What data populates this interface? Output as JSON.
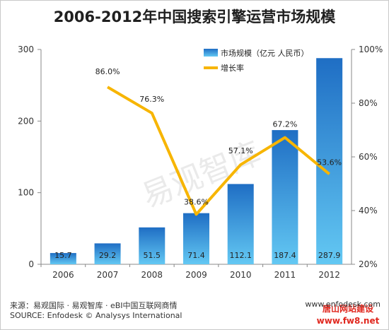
{
  "chart_data": {
    "type": "bar",
    "title": "2006-2012年中国搜索引擎运营市场规模",
    "categories": [
      "2006",
      "2007",
      "2008",
      "2009",
      "2010",
      "2011",
      "2012"
    ],
    "series": [
      {
        "name": "市场规模（亿元 人民币）",
        "type": "bar",
        "axis": "left",
        "values": [
          15.7,
          29.2,
          51.5,
          71.4,
          112.1,
          187.4,
          287.9
        ],
        "color": "#1f78c8"
      },
      {
        "name": "增长率",
        "type": "line",
        "axis": "right",
        "values": [
          null,
          86.0,
          76.3,
          38.6,
          57.1,
          67.2,
          53.6
        ],
        "labels": [
          "",
          "86.0%",
          "76.3%",
          "38.6%",
          "57.1%",
          "67.2%",
          "53.6%"
        ],
        "color": "#f7b500"
      }
    ],
    "y_left": {
      "range": [
        0,
        300
      ],
      "ticks": [
        "0",
        "100",
        "200",
        "300"
      ]
    },
    "y_right": {
      "range": [
        20,
        100
      ],
      "ticks": [
        "20%",
        "40%",
        "60%",
        "80%",
        "100%"
      ]
    },
    "grid": false,
    "legend_position": "top-right"
  },
  "watermark": "易观智库",
  "footer": {
    "source_cn": "来源：易观国际 · 易观智库 · eBI中国互联网商情",
    "source_en": "SOURCE: Enfodesk © Analysys International",
    "website": "www.enfodesk.com"
  },
  "stamp": {
    "line1": "唐山网站建设",
    "line2": "www.fw8.net"
  }
}
